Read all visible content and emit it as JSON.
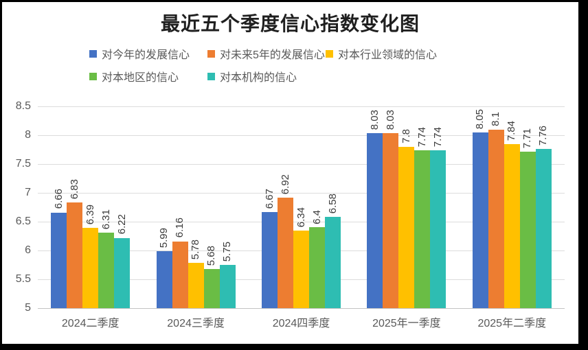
{
  "chart_data": {
    "type": "bar",
    "title": "最近五个季度信心指数变化图",
    "categories": [
      "2024二季度",
      "2024三季度",
      "2024四季度",
      "2025年一季度",
      "2025年二季度"
    ],
    "series": [
      {
        "name": "对今年的发展信心",
        "color": "#4472C4",
        "values": [
          6.66,
          5.99,
          6.67,
          8.03,
          8.05
        ]
      },
      {
        "name": "对未来5年的发展信心",
        "color": "#ED7D31",
        "values": [
          6.83,
          6.16,
          6.92,
          8.03,
          8.1
        ]
      },
      {
        "name": "对本行业领域的信心",
        "color": "#FFC000",
        "values": [
          6.39,
          5.78,
          6.34,
          7.8,
          7.84
        ]
      },
      {
        "name": "对本地区的信心",
        "color": "#6ABD45",
        "values": [
          6.31,
          5.68,
          6.4,
          7.74,
          7.71
        ]
      },
      {
        "name": "对本机构的信心",
        "color": "#2EBDB2",
        "values": [
          6.22,
          5.75,
          6.58,
          7.74,
          7.76
        ]
      }
    ],
    "ylim": [
      5,
      8.5
    ],
    "ytick_step": 0.5,
    "y_ticks": [
      "8.5",
      "8",
      "7.5",
      "7",
      "6.5",
      "6",
      "5.5",
      "5"
    ],
    "grid": true,
    "legend_position": "top-left",
    "data_labels": "rotated-vertical"
  }
}
